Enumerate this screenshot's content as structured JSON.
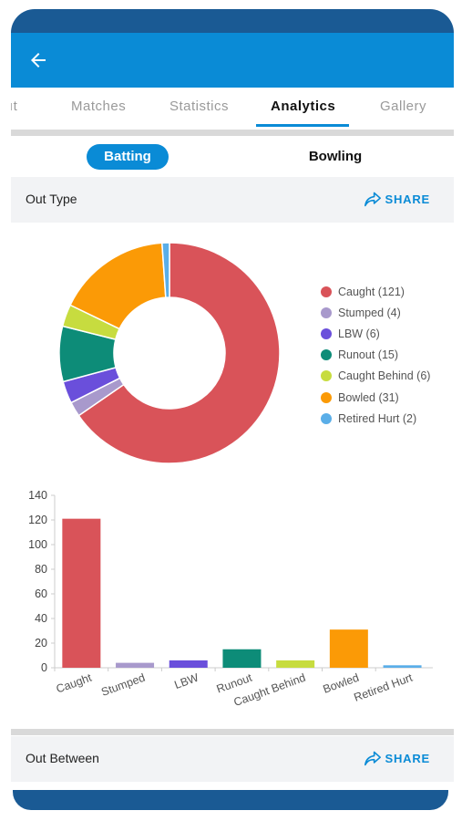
{
  "nav": {
    "tabs": [
      {
        "label": "ıt"
      },
      {
        "label": "Matches"
      },
      {
        "label": "Statistics"
      },
      {
        "label": "Analytics"
      },
      {
        "label": "Gallery"
      }
    ]
  },
  "segments": {
    "batting": "Batting",
    "bowling": "Bowling"
  },
  "sections": {
    "out_type": {
      "title": "Out Type",
      "share": "SHARE"
    },
    "out_between": {
      "title": "Out Between",
      "share": "SHARE"
    }
  },
  "colors": {
    "appbar": "#0a8bd6",
    "frame": "#1a5a94",
    "accent": "#0a8bd6"
  },
  "icons": {
    "back": "arrow-left-icon",
    "share": "share-icon"
  },
  "chart_data": [
    {
      "type": "pie",
      "donut": true,
      "legend_position": "right",
      "slices": [
        {
          "label": "Caught (121)",
          "value": 121,
          "color": "#d95359"
        },
        {
          "label": "Stumped (4)",
          "value": 4,
          "color": "#a899cc"
        },
        {
          "label": "LBW (6)",
          "value": 6,
          "color": "#6a4fdb"
        },
        {
          "label": "Runout (15)",
          "value": 15,
          "color": "#0d8c78"
        },
        {
          "label": "Caught Behind (6)",
          "value": 6,
          "color": "#c7dc3f"
        },
        {
          "label": "Bowled (31)",
          "value": 31,
          "color": "#fb9a06"
        },
        {
          "label": "Retired Hurt (2)",
          "value": 2,
          "color": "#5aaee8"
        }
      ]
    },
    {
      "type": "bar",
      "categories": [
        "Caught",
        "Stumped",
        "LBW",
        "Runout",
        "Caught Behind",
        "Bowled",
        "Retired Hurt"
      ],
      "values": [
        121,
        4,
        6,
        15,
        6,
        31,
        2
      ],
      "colors": [
        "#d95359",
        "#a899cc",
        "#6a4fdb",
        "#0d8c78",
        "#c7dc3f",
        "#fb9a06",
        "#5aaee8"
      ],
      "ylim": [
        0,
        140
      ],
      "yticks": [
        0,
        20,
        40,
        60,
        80,
        100,
        120,
        140
      ],
      "grid": false
    }
  ]
}
